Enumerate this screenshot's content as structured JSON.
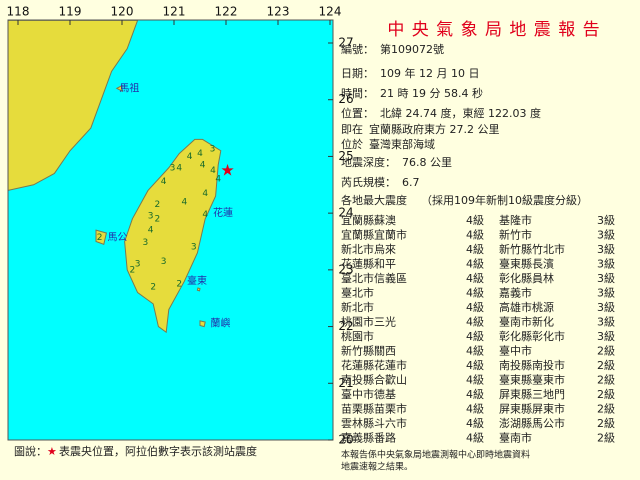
{
  "header": {
    "title": "中 央 氣 象 局 地 震 報 告"
  },
  "report": [
    {
      "label": "編號：",
      "value": "第109072號"
    },
    {
      "label": "日期：",
      "value": "109 年 12 月 10 日"
    },
    {
      "label": "時間：",
      "value": "21 時 19 分 58.4 秒"
    },
    {
      "label": "位置：",
      "value": "北緯 24.74 度，東經 122.03 度"
    },
    {
      "label": "即在",
      "value": "宜蘭縣政府東方 27.2 公里"
    },
    {
      "label": "位於",
      "value": "臺灣東部海域"
    },
    {
      "label": "地震深度：",
      "value": "76.8 公里"
    },
    {
      "label": "芮氏規模：",
      "value": "6.7"
    }
  ],
  "intensity_heading": {
    "label": "各地最大震度",
    "note": "（採用109年新制10級震度分級）"
  },
  "table": {
    "rows": [
      [
        "宜蘭縣蘇澳",
        "4級",
        "基隆市",
        "3級"
      ],
      [
        "宜蘭縣宜蘭市",
        "4級",
        "新竹市",
        "3級"
      ],
      [
        "新北市烏來",
        "4級",
        "新竹縣竹北市",
        "3級"
      ],
      [
        "花蓮縣和平",
        "4級",
        "臺東縣長濱",
        "3級"
      ],
      [
        "臺北市信義區",
        "4級",
        "彰化縣員林",
        "3級"
      ],
      [
        "臺北市",
        "4級",
        "嘉義市",
        "3級"
      ],
      [
        "新北市",
        "4級",
        "高雄市桃源",
        "3級"
      ],
      [
        "桃園市三光",
        "4級",
        "臺南市新化",
        "3級"
      ],
      [
        "桃園市",
        "4級",
        "彰化縣彰化市",
        "3級"
      ],
      [
        "新竹縣關西",
        "4級",
        "臺中市",
        "2級"
      ],
      [
        "花蓮縣花蓮市",
        "4級",
        "南投縣南投市",
        "2級"
      ],
      [
        "南投縣合歡山",
        "4級",
        "臺東縣臺東市",
        "2級"
      ],
      [
        "臺中市德基",
        "4級",
        "屏東縣三地門",
        "2級"
      ],
      [
        "苗栗縣苗栗市",
        "4級",
        "屏東縣屏東市",
        "2級"
      ],
      [
        "雲林縣斗六市",
        "4級",
        "澎湖縣馬公市",
        "2級"
      ],
      [
        "嘉義縣番路",
        "4級",
        "臺南市",
        "2級"
      ]
    ]
  },
  "footer": [
    "本報告係中央氣象局地震測報中心即時地震資料",
    "地震速報之結果。"
  ],
  "legend": {
    "label": "圖說：",
    "symbol": "★",
    "text": "表震央位置，阿拉伯數字表示該測站震度"
  },
  "map": {
    "xlim": [
      118,
      124
    ],
    "ylim": [
      20,
      27
    ],
    "xticks": [
      118,
      119,
      120,
      121,
      122,
      123,
      124
    ],
    "yticks": [
      27,
      26,
      25,
      24,
      23,
      22,
      21,
      20
    ],
    "epicenter": {
      "lon": 122.03,
      "lat": 24.74,
      "color": "#e0001c"
    },
    "places": [
      {
        "name": "馬祖",
        "lon": 119.95,
        "lat": 26.2
      },
      {
        "name": "馬公",
        "lon": 119.72,
        "lat": 23.57
      },
      {
        "name": "花蓮",
        "lon": 121.75,
        "lat": 24.0
      },
      {
        "name": "臺東",
        "lon": 121.25,
        "lat": 22.8
      },
      {
        "name": "蘭嶼",
        "lon": 121.7,
        "lat": 22.05
      }
    ],
    "stations": [
      {
        "lon": 121.85,
        "lat": 24.6,
        "intensity": "4"
      },
      {
        "lon": 121.75,
        "lat": 24.75,
        "intensity": "4"
      },
      {
        "lon": 121.55,
        "lat": 24.85,
        "intensity": "4"
      },
      {
        "lon": 121.5,
        "lat": 25.05,
        "intensity": "4"
      },
      {
        "lon": 121.3,
        "lat": 25.0,
        "intensity": "4"
      },
      {
        "lon": 121.1,
        "lat": 24.8,
        "intensity": "4"
      },
      {
        "lon": 121.74,
        "lat": 25.13,
        "intensity": "3"
      },
      {
        "lon": 120.97,
        "lat": 24.8,
        "intensity": "3"
      },
      {
        "lon": 121.6,
        "lat": 24.35,
        "intensity": "4"
      },
      {
        "lon": 121.6,
        "lat": 23.98,
        "intensity": "4"
      },
      {
        "lon": 120.8,
        "lat": 24.56,
        "intensity": "4"
      },
      {
        "lon": 121.2,
        "lat": 24.2,
        "intensity": "4"
      },
      {
        "lon": 120.55,
        "lat": 23.95,
        "intensity": "3"
      },
      {
        "lon": 120.45,
        "lat": 23.48,
        "intensity": "3"
      },
      {
        "lon": 120.55,
        "lat": 23.7,
        "intensity": "4"
      },
      {
        "lon": 120.68,
        "lat": 24.15,
        "intensity": "2"
      },
      {
        "lon": 120.68,
        "lat": 23.9,
        "intensity": "2"
      },
      {
        "lon": 121.38,
        "lat": 23.4,
        "intensity": "3"
      },
      {
        "lon": 120.3,
        "lat": 23.1,
        "intensity": "3"
      },
      {
        "lon": 120.2,
        "lat": 23.0,
        "intensity": "2"
      },
      {
        "lon": 120.8,
        "lat": 23.15,
        "intensity": "3"
      },
      {
        "lon": 120.6,
        "lat": 22.7,
        "intensity": "2"
      },
      {
        "lon": 121.1,
        "lat": 22.75,
        "intensity": "2"
      },
      {
        "lon": 119.57,
        "lat": 23.57,
        "intensity": "2"
      }
    ]
  }
}
